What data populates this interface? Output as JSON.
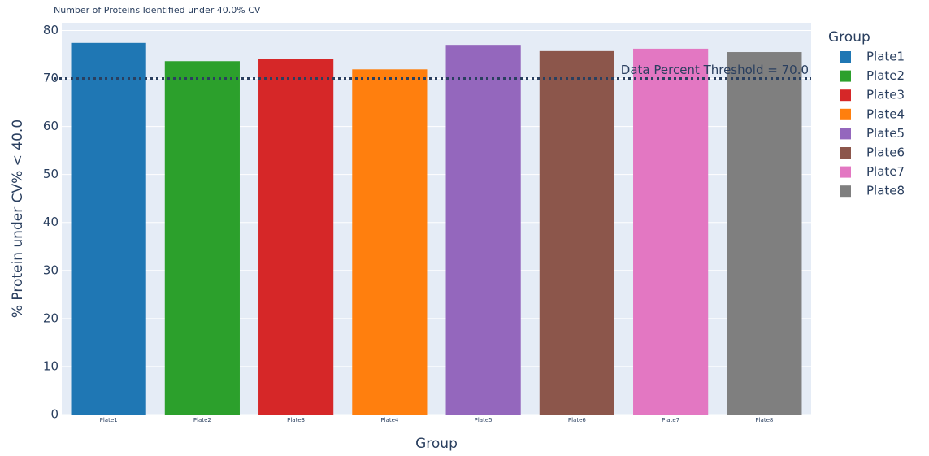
{
  "chart_data": {
    "type": "bar",
    "title": "Number of Proteins Identified under 40.0% CV",
    "x_label": "Group",
    "y_label": "% Protein under CV% < 40.0",
    "legend_title": "Group",
    "categories": [
      "Plate1",
      "Plate2",
      "Plate3",
      "Plate4",
      "Plate5",
      "Plate6",
      "Plate7",
      "Plate8"
    ],
    "values": [
      77.4,
      73.6,
      74.0,
      71.9,
      77.0,
      75.7,
      76.2,
      75.5
    ],
    "colors": [
      "#1f77b4",
      "#2ca02c",
      "#d62728",
      "#ff7f0e",
      "#9467bd",
      "#8c564b",
      "#e377c2",
      "#7f7f7f"
    ],
    "ylim": [
      0,
      81.6
    ],
    "yticks": [
      0,
      10,
      20,
      30,
      40,
      50,
      60,
      70,
      80
    ],
    "grid": true,
    "threshold": 70,
    "threshold_label": "Data Percent Threshold = 70.0",
    "legend_position": "right"
  }
}
